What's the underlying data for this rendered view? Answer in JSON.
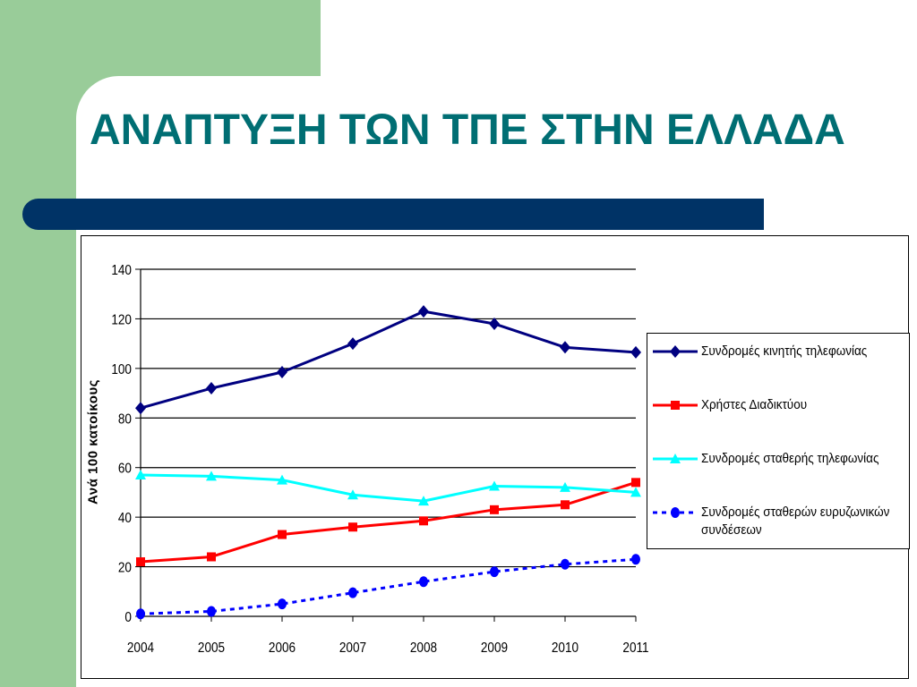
{
  "slide": {
    "title": "ΑΝΑΠΤΥΞΗ ΤΩΝ ΤΠΕ ΣΤΗΝ ΕΛΛΑΔΑ"
  },
  "colors": {
    "background_green": "#99cc99",
    "title_color": "#006e73",
    "title_bar": "#003366"
  },
  "chart_data": {
    "type": "line",
    "title": "",
    "xlabel": "",
    "ylabel": "Ανά 100 κατοίκους",
    "categories": [
      "2004",
      "2005",
      "2006",
      "2007",
      "2008",
      "2009",
      "2010",
      "2011"
    ],
    "ylim": [
      0,
      140
    ],
    "yticks": [
      0,
      20,
      40,
      60,
      80,
      100,
      120,
      140
    ],
    "grid": "horizontal",
    "legend_position": "right",
    "series": [
      {
        "name": "Συνδρομές κινητής τηλεφωνίας",
        "values": [
          84,
          92,
          98.5,
          110,
          123,
          118,
          108.5,
          106.5
        ],
        "color": "#000080",
        "marker": "diamond",
        "dash": "solid"
      },
      {
        "name": "Χρήστες Διαδικτύου",
        "values": [
          22,
          24,
          33,
          36,
          38.5,
          43,
          45,
          54
        ],
        "color": "#ff0000",
        "marker": "square",
        "dash": "solid"
      },
      {
        "name": "Συνδρομές σταθερής τηλεφωνίας",
        "values": [
          57,
          56.5,
          55,
          49,
          46.5,
          52.5,
          52,
          50
        ],
        "color": "#00ffff",
        "marker": "triangle",
        "dash": "solid"
      },
      {
        "name": "Συνδρομές σταθερών ευρυζωνικών συνδέσεων",
        "values": [
          1,
          2,
          5,
          9.5,
          14,
          18,
          21,
          23
        ],
        "color": "#0000ff",
        "marker": "circle",
        "dash": "dashed"
      }
    ]
  }
}
